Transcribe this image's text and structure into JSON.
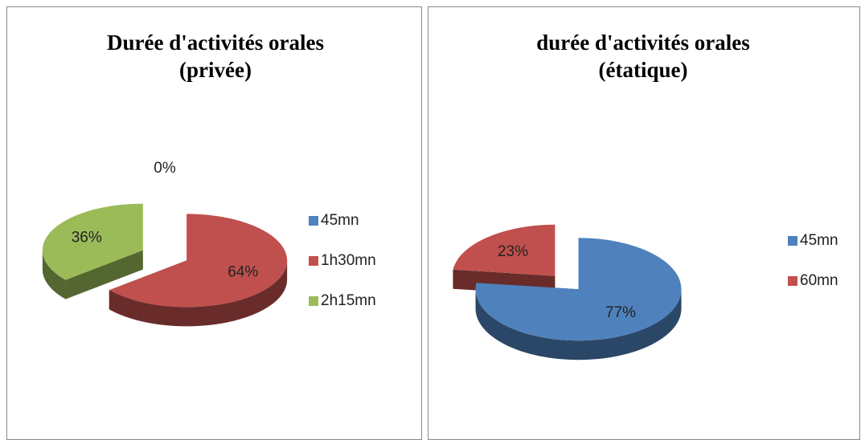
{
  "chart_data": [
    {
      "type": "pie",
      "title": "Durée d'activités orales (privée)",
      "categories": [
        "45mn",
        "1h30mn",
        "2h15mn"
      ],
      "values": [
        0,
        64,
        36
      ],
      "value_labels": [
        "0%",
        "64%",
        "36%"
      ],
      "colors": [
        "#4f81bd",
        "#c0504d",
        "#9bbb59"
      ],
      "legend": "right"
    },
    {
      "type": "pie",
      "title": "durée d'activités orales (étatique)",
      "categories": [
        "45mn",
        "60mn"
      ],
      "values": [
        77,
        23
      ],
      "value_labels": [
        "77%",
        "23%"
      ],
      "colors": [
        "#4f81bd",
        "#c0504d"
      ],
      "legend": "right"
    }
  ]
}
